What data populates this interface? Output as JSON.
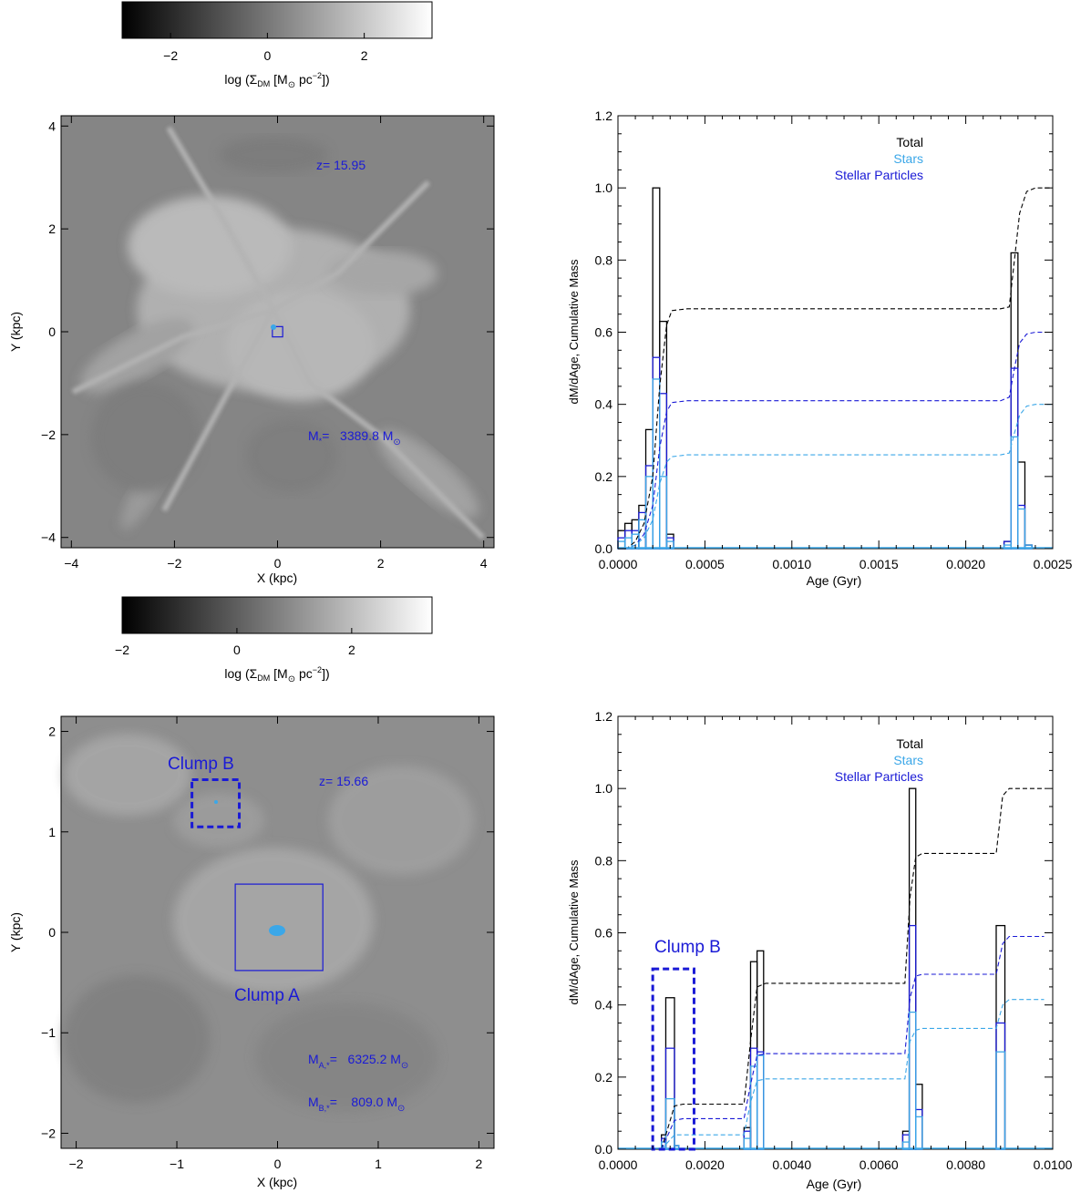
{
  "colorbars": [
    {
      "ticks": [
        {
          "v": -2,
          "t": "−2"
        },
        {
          "v": 0,
          "t": "0"
        },
        {
          "v": 2,
          "t": "2"
        }
      ],
      "range": [
        -3.0,
        3.4
      ],
      "label_prefix": "log (Σ",
      "label_sub": "DM",
      "label_mid": " [M",
      "label_sun": "⊙",
      "label_unit": " pc",
      "label_exp": "−2",
      "label_end": "])"
    },
    {
      "ticks": [
        {
          "v": -2,
          "t": "−2"
        },
        {
          "v": 0,
          "t": "0"
        },
        {
          "v": 2,
          "t": "2"
        }
      ],
      "range": [
        -2.0,
        3.4
      ],
      "label_prefix": "log (Σ",
      "label_sub": "DM",
      "label_mid": " [M",
      "label_sun": "⊙",
      "label_unit": " pc",
      "label_exp": "−2",
      "label_end": "])"
    }
  ],
  "maps": [
    {
      "xlim": [
        -4.2,
        4.2
      ],
      "ylim": [
        -4.2,
        4.2
      ],
      "xticks": [
        {
          "v": -4,
          "t": "−4"
        },
        {
          "v": -2,
          "t": "−2"
        },
        {
          "v": 0,
          "t": "0"
        },
        {
          "v": 2,
          "t": "2"
        },
        {
          "v": 4,
          "t": "4"
        }
      ],
      "yticks": [
        {
          "v": -4,
          "t": "−4"
        },
        {
          "v": -2,
          "t": "−2"
        },
        {
          "v": 0,
          "t": "0"
        },
        {
          "v": 2,
          "t": "2"
        },
        {
          "v": 4,
          "t": "4"
        }
      ],
      "xlabel": "X (kpc)",
      "ylabel": "Y (kpc)",
      "redshift": "z= 15.95",
      "mass_lines": [
        {
          "label": "M",
          "sub": "*",
          "value": "=   3389.8 M",
          "sun": "⊙"
        }
      ],
      "boxes": [
        {
          "x0": -0.1,
          "x1": 0.1,
          "y0": -0.1,
          "y1": 0.1,
          "style": "solid"
        }
      ],
      "clump_labels": []
    },
    {
      "xlim": [
        -2.15,
        2.15
      ],
      "ylim": [
        -2.15,
        2.15
      ],
      "xticks": [
        {
          "v": -2,
          "t": "−2"
        },
        {
          "v": -1,
          "t": "−1"
        },
        {
          "v": 0,
          "t": "0"
        },
        {
          "v": 1,
          "t": "1"
        },
        {
          "v": 2,
          "t": "2"
        }
      ],
      "yticks": [
        {
          "v": -2,
          "t": "−2"
        },
        {
          "v": -1,
          "t": "−1"
        },
        {
          "v": 0,
          "t": "0"
        },
        {
          "v": 1,
          "t": "1"
        },
        {
          "v": 2,
          "t": "2"
        }
      ],
      "xlabel": "X (kpc)",
      "ylabel": "Y (kpc)",
      "redshift": "z= 15.66",
      "mass_lines": [
        {
          "label": "M",
          "sub": "A,*",
          "value": "=   6325.2 M",
          "sun": "⊙"
        },
        {
          "label": "M",
          "sub": "B,*",
          "value": "=    809.0 M",
          "sun": "⊙"
        }
      ],
      "boxes": [
        {
          "x0": -0.42,
          "x1": 0.45,
          "y0": -0.38,
          "y1": 0.48,
          "style": "solid"
        },
        {
          "x0": -0.85,
          "x1": -0.38,
          "y0": 1.05,
          "y1": 1.52,
          "style": "dashed"
        }
      ],
      "clump_labels": [
        "Clump B",
        "Clump A"
      ]
    }
  ],
  "chart_data": [
    {
      "type": "histogram-step",
      "xlabel": "Age (Gyr)",
      "ylabel": "dM/dAge, Cumulative Mass",
      "xlim": [
        0.0,
        0.0025
      ],
      "ylim": [
        0.0,
        1.2
      ],
      "xticks": [
        "0.0000",
        "0.0005",
        "0.0010",
        "0.0015",
        "0.0020",
        "0.0025"
      ],
      "yticks": [
        "0.0",
        "0.2",
        "0.4",
        "0.6",
        "0.8",
        "1.0",
        "1.2"
      ],
      "legend": [
        "Total",
        "Stars",
        "Stellar Particles"
      ],
      "colors": {
        "total": "#000000",
        "stars": "#3ba7e8",
        "stellar_particles": "#1a1ad6"
      },
      "series": [
        {
          "name": "Total",
          "kind": "hist",
          "bins": [
            [
              0.0,
              4e-05,
              0.05
            ],
            [
              4e-05,
              8e-05,
              0.07
            ],
            [
              8e-05,
              0.00012,
              0.08
            ],
            [
              0.00012,
              0.00016,
              0.12
            ],
            [
              0.00016,
              0.0002,
              0.33
            ],
            [
              0.0002,
              0.00024,
              1.0
            ],
            [
              0.00024,
              0.00028,
              0.63
            ],
            [
              0.00028,
              0.00032,
              0.04
            ],
            [
              0.00222,
              0.00226,
              0.02
            ],
            [
              0.00226,
              0.0023,
              0.82
            ],
            [
              0.0023,
              0.00234,
              0.24
            ],
            [
              0.00234,
              0.00238,
              0.01
            ]
          ]
        },
        {
          "name": "Stellar Particles",
          "kind": "hist",
          "bins": [
            [
              0.0,
              4e-05,
              0.03
            ],
            [
              4e-05,
              8e-05,
              0.05
            ],
            [
              8e-05,
              0.00012,
              0.05
            ],
            [
              0.00012,
              0.00016,
              0.1
            ],
            [
              0.00016,
              0.0002,
              0.23
            ],
            [
              0.0002,
              0.00024,
              0.53
            ],
            [
              0.00024,
              0.00028,
              0.43
            ],
            [
              0.00028,
              0.00032,
              0.03
            ],
            [
              0.00222,
              0.00226,
              0.02
            ],
            [
              0.00226,
              0.0023,
              0.5
            ],
            [
              0.0023,
              0.00234,
              0.12
            ],
            [
              0.00234,
              0.00238,
              0.01
            ]
          ]
        },
        {
          "name": "Stars",
          "kind": "hist",
          "bins": [
            [
              0.0,
              4e-05,
              0.02
            ],
            [
              4e-05,
              8e-05,
              0.03
            ],
            [
              8e-05,
              0.00012,
              0.04
            ],
            [
              0.00012,
              0.00016,
              0.08
            ],
            [
              0.00016,
              0.0002,
              0.2
            ],
            [
              0.0002,
              0.00024,
              0.47
            ],
            [
              0.00024,
              0.00028,
              0.2
            ],
            [
              0.00028,
              0.00032,
              0.02
            ],
            [
              0.00222,
              0.00226,
              0.01
            ],
            [
              0.00226,
              0.0023,
              0.31
            ],
            [
              0.0023,
              0.00234,
              0.11
            ],
            [
              0.00234,
              0.00238,
              0.01
            ]
          ]
        },
        {
          "name": "Total cumulative",
          "kind": "cumulative",
          "x": [
            0.0,
            5e-05,
            0.0001,
            0.00015,
            0.0002,
            0.00024,
            0.00028,
            0.00031,
            0.0004,
            0.0022,
            0.00225,
            0.00228,
            0.00231,
            0.00235,
            0.0024,
            0.0025
          ],
          "y": [
            0.0,
            0.0,
            0.02,
            0.07,
            0.2,
            0.45,
            0.62,
            0.66,
            0.665,
            0.665,
            0.67,
            0.8,
            0.93,
            0.99,
            1.0,
            1.0
          ]
        },
        {
          "name": "Stellar Particles cumulative",
          "kind": "cumulative",
          "x": [
            0.0,
            5e-05,
            0.0001,
            0.00015,
            0.0002,
            0.00024,
            0.00028,
            0.00031,
            0.0004,
            0.0022,
            0.00225,
            0.00228,
            0.00231,
            0.00235,
            0.0024,
            0.0025
          ],
          "y": [
            0.0,
            0.0,
            0.01,
            0.04,
            0.12,
            0.28,
            0.38,
            0.405,
            0.41,
            0.41,
            0.42,
            0.5,
            0.57,
            0.595,
            0.6,
            0.6
          ]
        },
        {
          "name": "Stars cumulative",
          "kind": "cumulative",
          "x": [
            0.0,
            5e-05,
            0.0001,
            0.00015,
            0.0002,
            0.00024,
            0.00028,
            0.00031,
            0.0004,
            0.0022,
            0.00225,
            0.00228,
            0.00231,
            0.00235,
            0.0024,
            0.0025
          ],
          "y": [
            0.0,
            0.0,
            0.01,
            0.03,
            0.08,
            0.18,
            0.24,
            0.255,
            0.26,
            0.26,
            0.265,
            0.32,
            0.37,
            0.395,
            0.4,
            0.4
          ]
        }
      ],
      "annotation": null
    },
    {
      "type": "histogram-step",
      "xlabel": "Age (Gyr)",
      "ylabel": "dM/dAge, Cumulative Mass",
      "xlim": [
        0.0,
        0.01
      ],
      "ylim": [
        0.0,
        1.2
      ],
      "xticks": [
        "0.0000",
        "0.0020",
        "0.0040",
        "0.0060",
        "0.0080",
        "0.0100"
      ],
      "yticks": [
        "0.0",
        "0.2",
        "0.4",
        "0.6",
        "0.8",
        "1.0",
        "1.2"
      ],
      "legend": [
        "Total",
        "Stars",
        "Stellar Particles"
      ],
      "colors": {
        "total": "#000000",
        "stars": "#3ba7e8",
        "stellar_particles": "#1a1ad6"
      },
      "series": [
        {
          "name": "Total",
          "kind": "hist",
          "bins": [
            [
              0.001,
              0.0011,
              0.04
            ],
            [
              0.0011,
              0.0013,
              0.42
            ],
            [
              0.0013,
              0.0014,
              0.01
            ],
            [
              0.0029,
              0.00305,
              0.06
            ],
            [
              0.00305,
              0.0032,
              0.52
            ],
            [
              0.0032,
              0.00335,
              0.55
            ],
            [
              0.00655,
              0.0067,
              0.05
            ],
            [
              0.0067,
              0.00685,
              1.0
            ],
            [
              0.00685,
              0.007,
              0.18
            ],
            [
              0.0087,
              0.0089,
              0.62
            ]
          ]
        },
        {
          "name": "Stellar Particles",
          "kind": "hist",
          "bins": [
            [
              0.001,
              0.0011,
              0.03
            ],
            [
              0.0011,
              0.0013,
              0.28
            ],
            [
              0.0013,
              0.0014,
              0.01
            ],
            [
              0.0029,
              0.00305,
              0.05
            ],
            [
              0.00305,
              0.0032,
              0.28
            ],
            [
              0.0032,
              0.00335,
              0.27
            ],
            [
              0.00655,
              0.0067,
              0.04
            ],
            [
              0.0067,
              0.00685,
              0.62
            ],
            [
              0.00685,
              0.007,
              0.11
            ],
            [
              0.0087,
              0.0089,
              0.35
            ]
          ]
        },
        {
          "name": "Stars",
          "kind": "hist",
          "bins": [
            [
              0.001,
              0.0011,
              0.02
            ],
            [
              0.0011,
              0.0013,
              0.14
            ],
            [
              0.0013,
              0.0014,
              0.01
            ],
            [
              0.0029,
              0.00305,
              0.03
            ],
            [
              0.00305,
              0.0032,
              0.23
            ],
            [
              0.0032,
              0.00335,
              0.26
            ],
            [
              0.00655,
              0.0067,
              0.02
            ],
            [
              0.0067,
              0.00685,
              0.38
            ],
            [
              0.00685,
              0.007,
              0.09
            ],
            [
              0.0087,
              0.0089,
              0.27
            ]
          ]
        },
        {
          "name": "Total cumulative",
          "kind": "cumulative",
          "x": [
            0.001,
            0.00115,
            0.0013,
            0.0015,
            0.0029,
            0.00305,
            0.0032,
            0.0034,
            0.0066,
            0.00672,
            0.00685,
            0.007,
            0.0087,
            0.00885,
            0.009,
            0.0098
          ],
          "y": [
            0.0,
            0.06,
            0.12,
            0.125,
            0.125,
            0.3,
            0.45,
            0.46,
            0.46,
            0.7,
            0.81,
            0.82,
            0.82,
            0.98,
            1.0,
            1.0
          ]
        },
        {
          "name": "Stellar Particles cumulative",
          "kind": "cumulative",
          "x": [
            0.001,
            0.00115,
            0.0013,
            0.0015,
            0.0029,
            0.00305,
            0.0032,
            0.0034,
            0.0066,
            0.00672,
            0.00685,
            0.007,
            0.0087,
            0.00885,
            0.009,
            0.0098
          ],
          "y": [
            0.0,
            0.04,
            0.08,
            0.085,
            0.085,
            0.18,
            0.26,
            0.265,
            0.265,
            0.42,
            0.48,
            0.485,
            0.485,
            0.57,
            0.59,
            0.59
          ]
        },
        {
          "name": "Stars cumulative",
          "kind": "cumulative",
          "x": [
            0.001,
            0.00115,
            0.0013,
            0.0015,
            0.0029,
            0.00305,
            0.0032,
            0.0034,
            0.0066,
            0.00672,
            0.00685,
            0.007,
            0.0087,
            0.00885,
            0.009,
            0.0098
          ],
          "y": [
            0.0,
            0.02,
            0.04,
            0.04,
            0.04,
            0.13,
            0.19,
            0.195,
            0.195,
            0.3,
            0.33,
            0.335,
            0.335,
            0.4,
            0.415,
            0.415
          ]
        }
      ],
      "annotation": {
        "text": "Clump B",
        "x0": 0.0008,
        "x1": 0.00175,
        "y0": 0.0,
        "y1": 0.5
      }
    }
  ]
}
